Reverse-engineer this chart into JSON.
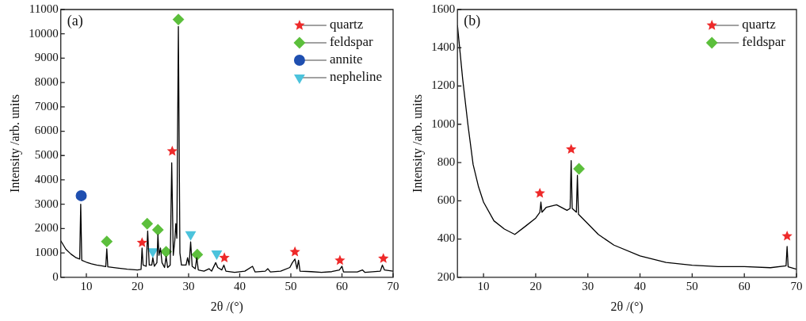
{
  "chart_data": [
    {
      "type": "line",
      "annotations": [
        "(a)"
      ],
      "xlabel": "2θ /(°)",
      "ylabel": "Intensity /arb. units",
      "xlim": [
        5,
        70
      ],
      "xticks": [
        10,
        20,
        30,
        40,
        50,
        60,
        70
      ],
      "ylim": [
        0,
        11000
      ],
      "yticks": [
        0,
        1000,
        2000,
        3000,
        4000,
        5000,
        6000,
        7000,
        8000,
        9000,
        10000,
        11000
      ],
      "grid": false,
      "legend": "top right",
      "series": [
        {
          "color": "#000000",
          "marker": "none",
          "x": [
            5,
            6,
            7,
            8,
            8.7,
            8.9,
            9.1,
            10,
            11,
            12,
            13,
            13.8,
            14.0,
            14.2,
            16,
            18,
            20,
            20.7,
            20.9,
            21.1,
            21.7,
            22.0,
            22.3,
            22.8,
            23.0,
            23.3,
            23.8,
            24.0,
            24.2,
            24.5,
            24.8,
            25.3,
            25.6,
            25.9,
            26.4,
            26.7,
            27.0,
            27.3,
            27.5,
            27.7,
            28.0,
            28.3,
            28.6,
            29.5,
            29.8,
            30.1,
            30.4,
            30.7,
            31.3,
            31.6,
            31.9,
            33,
            34,
            34.5,
            35.3,
            35.7,
            36.5,
            36.9,
            37.3,
            39,
            41,
            42.5,
            43,
            45,
            45.5,
            46,
            48,
            49.8,
            50.3,
            50.8,
            51.2,
            51.5,
            51.8,
            54,
            56,
            58,
            59.5,
            60.0,
            60.3,
            63,
            64,
            64.5,
            67.5,
            67.9,
            68.3,
            70
          ],
          "values": [
            1500,
            1150,
            950,
            800,
            750,
            3000,
            700,
            620,
            550,
            500,
            470,
            440,
            1170,
            430,
            380,
            330,
            300,
            320,
            1200,
            500,
            450,
            1900,
            500,
            500,
            800,
            450,
            600,
            1750,
            900,
            1200,
            600,
            400,
            850,
            400,
            500,
            4700,
            900,
            1500,
            2200,
            1600,
            10300,
            1000,
            500,
            500,
            800,
            500,
            1450,
            450,
            350,
            800,
            300,
            250,
            350,
            250,
            600,
            400,
            300,
            500,
            250,
            200,
            250,
            450,
            220,
            250,
            350,
            220,
            250,
            400,
            600,
            750,
            350,
            700,
            250,
            230,
            200,
            230,
            300,
            450,
            220,
            220,
            300,
            200,
            250,
            500,
            300,
            250
          ]
        },
        {
          "type": "scatter",
          "name": "quartz",
          "color": "#ee2a2a",
          "marker": "star",
          "x": [
            20.9,
            26.8,
            37.0,
            50.8,
            59.6,
            68.1
          ],
          "values": [
            1420,
            5180,
            800,
            1040,
            690,
            770
          ]
        },
        {
          "type": "scatter",
          "name": "feldspar",
          "color": "#5cbf3c",
          "marker": "diamond",
          "x": [
            14.0,
            21.9,
            24.0,
            25.6,
            28.0,
            31.7
          ],
          "values": [
            1470,
            2200,
            1950,
            1050,
            10590,
            930
          ]
        },
        {
          "type": "scatter",
          "name": "annite",
          "color": "#1f4fb0",
          "marker": "circle",
          "x": [
            9.0
          ],
          "values": [
            3350
          ]
        },
        {
          "type": "scatter",
          "name": "nepheline",
          "color": "#4cc3dc",
          "marker": "triangle",
          "x": [
            23.0,
            30.4,
            35.5
          ],
          "values": [
            1060,
            1760,
            970
          ]
        }
      ]
    },
    {
      "type": "line",
      "annotations": [
        "(b)"
      ],
      "xlabel": "2θ /(°)",
      "ylabel": "Intensity /arb. units",
      "xlim": [
        5,
        70
      ],
      "xticks": [
        10,
        20,
        30,
        40,
        50,
        60,
        70
      ],
      "ylim": [
        200,
        1600
      ],
      "yticks": [
        200,
        400,
        600,
        800,
        1000,
        1200,
        1400,
        1600
      ],
      "grid": false,
      "legend": "top right",
      "series": [
        {
          "color": "#000000",
          "marker": "none",
          "x": [
            5,
            6,
            7,
            8,
            9,
            10,
            12,
            14,
            16,
            18,
            20,
            20.8,
            21.0,
            21.2,
            22,
            24,
            26,
            26.6,
            26.8,
            27.0,
            27.8,
            28.0,
            28.2,
            30,
            32,
            35,
            40,
            45,
            50,
            55,
            60,
            65,
            68.0,
            68.2,
            68.4,
            70
          ],
          "values": [
            1518,
            1237,
            1000,
            790,
            677,
            593,
            495,
            452,
            424,
            466,
            509,
            540,
            593,
            540,
            565,
            579,
            550,
            560,
            810,
            560,
            540,
            733,
            530,
            480,
            424,
            368,
            312,
            277,
            263,
            256,
            256,
            250,
            260,
            361,
            255,
            242
          ]
        },
        {
          "type": "scatter",
          "name": "quartz",
          "color": "#ee2a2a",
          "marker": "star",
          "x": [
            20.8,
            26.8,
            68.2
          ],
          "values": [
            639,
            869,
            415
          ]
        },
        {
          "type": "scatter",
          "name": "feldspar",
          "color": "#5cbf3c",
          "marker": "diamond",
          "x": [
            28.3
          ],
          "values": [
            767
          ]
        }
      ]
    }
  ]
}
